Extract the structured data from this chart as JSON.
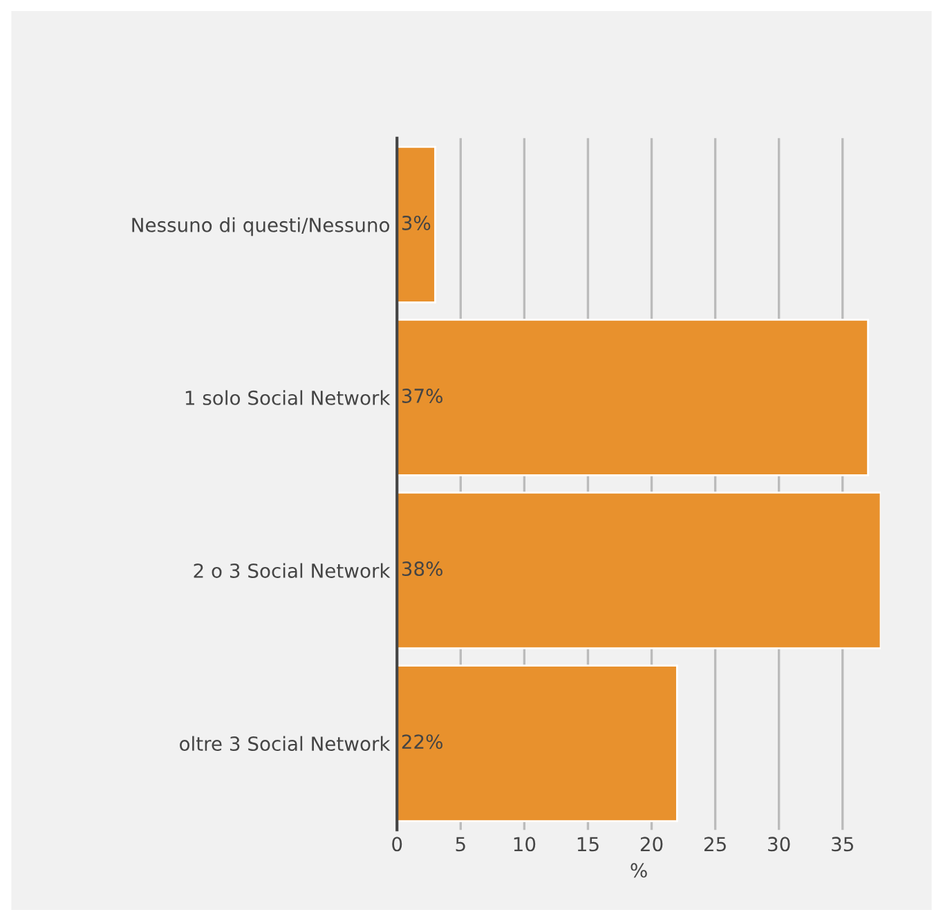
{
  "chart_data": {
    "type": "bar",
    "orientation": "horizontal",
    "xlabel": "%",
    "categories": [
      "Nessuno di questi/Nessuno",
      "1 solo Social Network",
      "2 o 3 Social Network",
      "oltre 3 Social Network"
    ],
    "values": [
      3,
      37,
      38,
      22
    ],
    "value_labels": [
      "3%",
      "37%",
      "38%",
      "22%"
    ],
    "color": "#e8912d",
    "xlim": [
      0,
      38
    ],
    "xticks": [
      0,
      5,
      10,
      15,
      20,
      25,
      30,
      35
    ],
    "grid": "x",
    "legend": false
  }
}
